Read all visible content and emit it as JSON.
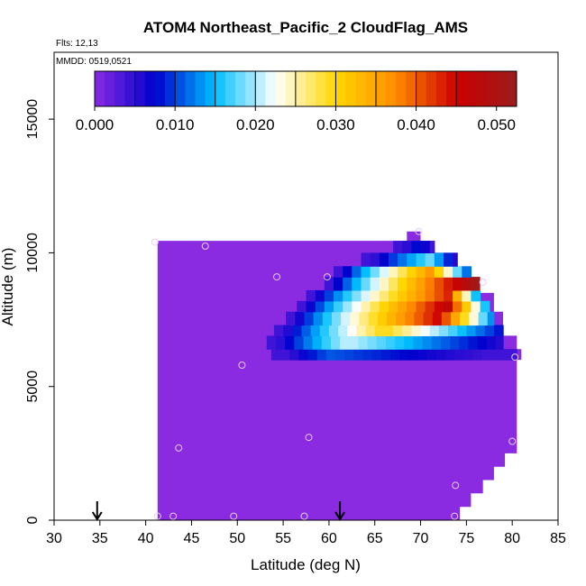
{
  "chart_data": {
    "type": "heatmap",
    "title": "ATOM4 Northeast_Pacific_2 CloudFlag_AMS",
    "flights_label": "Flts: 12,13",
    "dates_label": "MMDD: 0519,0521",
    "xlabel": "Latitude (deg N)",
    "ylabel": "Altitude (m)",
    "xlim": [
      30,
      85
    ],
    "ylim": [
      0,
      17500
    ],
    "x_ticks": [
      "30",
      "35",
      "40",
      "45",
      "50",
      "55",
      "60",
      "65",
      "70",
      "75",
      "80",
      "85"
    ],
    "y_ticks": [
      "0",
      "5000",
      "10000",
      "15000"
    ],
    "colorbar": {
      "min": 0,
      "max": 0.0525,
      "ticks": [
        "0.000",
        "0.010",
        "0.020",
        "0.030",
        "0.040",
        "0.050"
      ],
      "tick_values": [
        0,
        0.01,
        0.02,
        0.03,
        0.04,
        0.05
      ],
      "colors": [
        "#8a2be2",
        "#0000cd",
        "#00bfff",
        "#ffffff",
        "#ffd700",
        "#ff8c00",
        "#cc0000",
        "#9b1c1c"
      ]
    },
    "background_value": 0,
    "domain_outline": [
      [
        41.3,
        10450
      ],
      [
        68.5,
        10450
      ],
      [
        68.5,
        10800
      ],
      [
        70,
        10800
      ],
      [
        70,
        10450
      ],
      [
        71.5,
        10450
      ],
      [
        71.5,
        10000
      ],
      [
        74,
        10000
      ],
      [
        74,
        9000
      ],
      [
        76,
        9000
      ],
      [
        76,
        8500
      ],
      [
        78,
        8500
      ],
      [
        78,
        7800
      ],
      [
        79,
        7800
      ],
      [
        79,
        6900
      ],
      [
        80.5,
        6900
      ],
      [
        80.5,
        6400
      ],
      [
        81,
        6400
      ],
      [
        81,
        6000
      ],
      [
        80.5,
        6000
      ],
      [
        80.5,
        2500
      ],
      [
        79.2,
        2500
      ],
      [
        79.2,
        2000
      ],
      [
        78,
        2000
      ],
      [
        78,
        1500
      ],
      [
        76.8,
        1500
      ],
      [
        76.8,
        1000
      ],
      [
        75.5,
        1000
      ],
      [
        75.5,
        500
      ],
      [
        74.3,
        500
      ],
      [
        74.3,
        0
      ],
      [
        41.3,
        0
      ]
    ],
    "cloud_layers": [
      {
        "alt_min": 6000,
        "alt_max": 6400,
        "lat_min": 53.7,
        "lat_max": 80.5,
        "peak_value": 0.011,
        "peak_lat": 60
      },
      {
        "alt_min": 6400,
        "alt_max": 6900,
        "lat_min": 53.2,
        "lat_max": 79.0,
        "peak_value": 0.021,
        "peak_lat": 62
      },
      {
        "alt_min": 6900,
        "alt_max": 7300,
        "lat_min": 54.0,
        "lat_max": 79.0,
        "peak_value": 0.03,
        "peak_lat": 66
      },
      {
        "alt_min": 7300,
        "alt_max": 7800,
        "lat_min": 55.3,
        "lat_max": 78.0,
        "peak_value": 0.045,
        "peak_lat": 72
      },
      {
        "alt_min": 7800,
        "alt_max": 8200,
        "lat_min": 56.5,
        "lat_max": 77.5,
        "peak_value": 0.047,
        "peak_lat": 73
      },
      {
        "alt_min": 8200,
        "alt_max": 8600,
        "lat_min": 57.5,
        "lat_max": 76.5,
        "peak_value": 0.043,
        "peak_lat": 73
      },
      {
        "alt_min": 8600,
        "alt_max": 9100,
        "lat_min": 59.5,
        "lat_max": 77.0,
        "peak_value": 0.051,
        "peak_lat": 76
      },
      {
        "alt_min": 9100,
        "alt_max": 9500,
        "lat_min": 60.5,
        "lat_max": 75.5,
        "peak_value": 0.036,
        "peak_lat": 71
      },
      {
        "alt_min": 9500,
        "alt_max": 10000,
        "lat_min": 63.5,
        "lat_max": 74.0,
        "peak_value": 0.018,
        "peak_lat": 71
      },
      {
        "alt_min": 10000,
        "alt_max": 10450,
        "lat_min": 67.0,
        "lat_max": 71.5,
        "peak_value": 0.009,
        "peak_lat": 70
      }
    ],
    "sample_points": [
      [
        41.0,
        10400
      ],
      [
        46.5,
        10250
      ],
      [
        54.3,
        9100
      ],
      [
        59.8,
        9100
      ],
      [
        69.8,
        10800
      ],
      [
        76.8,
        8900
      ],
      [
        50.5,
        5800
      ],
      [
        80.3,
        6100
      ],
      [
        43.6,
        2700
      ],
      [
        57.8,
        3100
      ],
      [
        80.0,
        2950
      ],
      [
        73.8,
        1300
      ],
      [
        41.3,
        150
      ],
      [
        43.0,
        150
      ],
      [
        49.6,
        150
      ],
      [
        57.3,
        150
      ],
      [
        73.7,
        150
      ]
    ],
    "arrow_latitudes": [
      34.7,
      61.2
    ]
  }
}
